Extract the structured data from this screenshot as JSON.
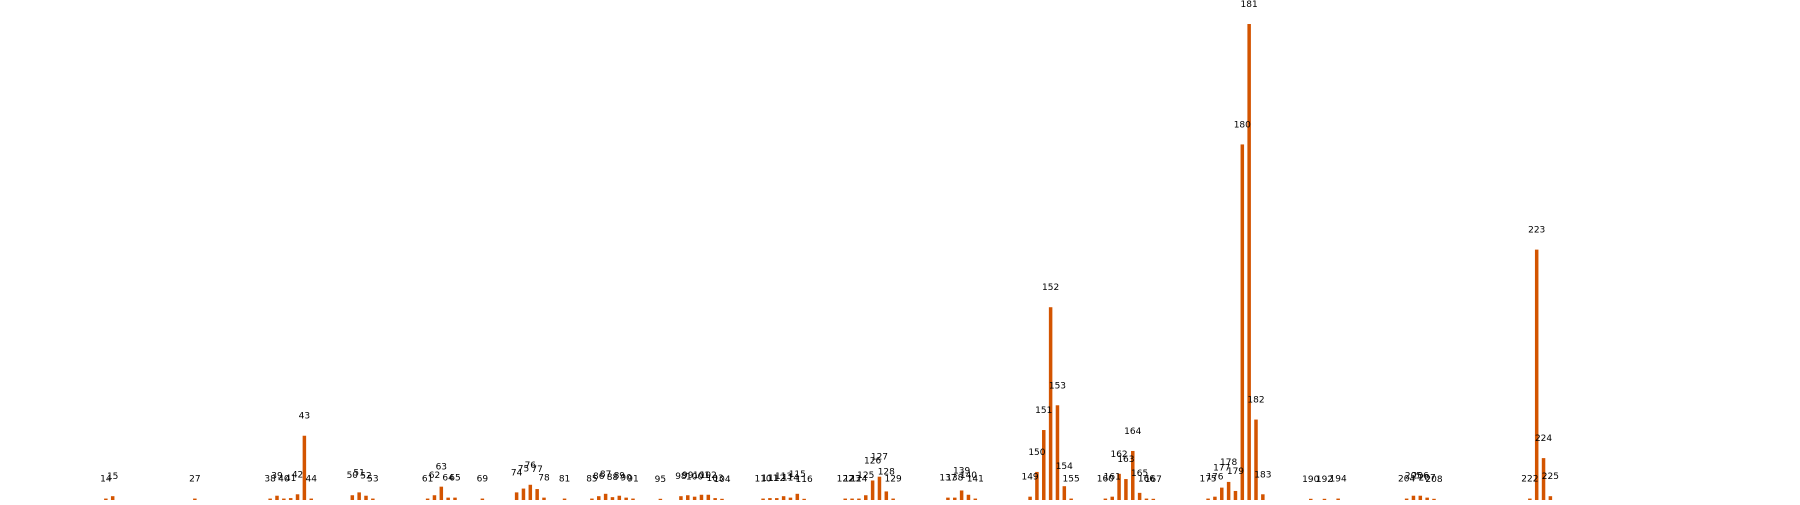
{
  "chart_data": {
    "type": "bar",
    "title": "",
    "xlabel": "",
    "ylabel": "",
    "grid": false,
    "axes_visible": false,
    "bar_color": "#D35400",
    "x_range": [
      0,
      260
    ],
    "ylim": [
      0,
      100
    ],
    "points": [
      {
        "x": 14,
        "value": 0.3,
        "label": "14"
      },
      {
        "x": 15,
        "value": 0.8,
        "label": "15"
      },
      {
        "x": 27,
        "value": 0.3,
        "label": "27"
      },
      {
        "x": 38,
        "value": 0.3,
        "label": "38"
      },
      {
        "x": 39,
        "value": 0.9,
        "label": "39"
      },
      {
        "x": 40,
        "value": 0.3,
        "label": "40"
      },
      {
        "x": 41,
        "value": 0.4,
        "label": "41"
      },
      {
        "x": 42,
        "value": 1.2,
        "label": "42"
      },
      {
        "x": 43,
        "value": 13.5,
        "label": "43"
      },
      {
        "x": 44,
        "value": 0.3,
        "label": "44"
      },
      {
        "x": 50,
        "value": 1.0,
        "label": "50"
      },
      {
        "x": 51,
        "value": 1.6,
        "label": "51"
      },
      {
        "x": 52,
        "value": 0.9,
        "label": "52"
      },
      {
        "x": 53,
        "value": 0.3,
        "label": "53"
      },
      {
        "x": 61,
        "value": 0.3,
        "label": "61"
      },
      {
        "x": 62,
        "value": 1.0,
        "label": "62"
      },
      {
        "x": 63,
        "value": 2.8,
        "label": "63"
      },
      {
        "x": 64,
        "value": 0.5,
        "label": "64"
      },
      {
        "x": 65,
        "value": 0.5,
        "label": "65"
      },
      {
        "x": 69,
        "value": 0.3,
        "label": "69"
      },
      {
        "x": 74,
        "value": 1.6,
        "label": "74"
      },
      {
        "x": 75,
        "value": 2.4,
        "label": "75"
      },
      {
        "x": 76,
        "value": 3.2,
        "label": "76"
      },
      {
        "x": 77,
        "value": 2.3,
        "label": "77"
      },
      {
        "x": 78,
        "value": 0.5,
        "label": "78"
      },
      {
        "x": 81,
        "value": 0.3,
        "label": "81"
      },
      {
        "x": 85,
        "value": 0.3,
        "label": "85"
      },
      {
        "x": 86,
        "value": 0.8,
        "label": "86"
      },
      {
        "x": 87,
        "value": 1.3,
        "label": "87"
      },
      {
        "x": 88,
        "value": 0.6,
        "label": "88"
      },
      {
        "x": 89,
        "value": 0.9,
        "label": "89"
      },
      {
        "x": 90,
        "value": 0.5,
        "label": "90"
      },
      {
        "x": 91,
        "value": 0.3,
        "label": "91"
      },
      {
        "x": 95,
        "value": 0.1,
        "label": "95"
      },
      {
        "x": 98,
        "value": 0.8,
        "label": "98"
      },
      {
        "x": 99,
        "value": 1.0,
        "label": "99"
      },
      {
        "x": 100,
        "value": 0.7,
        "label": "100"
      },
      {
        "x": 101,
        "value": 1.1,
        "label": "101"
      },
      {
        "x": 102,
        "value": 1.1,
        "label": "102"
      },
      {
        "x": 103,
        "value": 0.4,
        "label": "103"
      },
      {
        "x": 104,
        "value": 0.2,
        "label": "104"
      },
      {
        "x": 110,
        "value": 0.3,
        "label": "110"
      },
      {
        "x": 111,
        "value": 0.4,
        "label": "111"
      },
      {
        "x": 112,
        "value": 0.4,
        "label": "112"
      },
      {
        "x": 113,
        "value": 0.8,
        "label": "113"
      },
      {
        "x": 114,
        "value": 0.5,
        "label": "114"
      },
      {
        "x": 115,
        "value": 1.3,
        "label": "115"
      },
      {
        "x": 116,
        "value": 0.2,
        "label": "116"
      },
      {
        "x": 122,
        "value": 0.3,
        "label": "122"
      },
      {
        "x": 123,
        "value": 0.3,
        "label": "123"
      },
      {
        "x": 124,
        "value": 0.3,
        "label": "124"
      },
      {
        "x": 125,
        "value": 1.0,
        "label": "125"
      },
      {
        "x": 126,
        "value": 4.1,
        "label": "126"
      },
      {
        "x": 127,
        "value": 4.9,
        "label": "127"
      },
      {
        "x": 128,
        "value": 1.8,
        "label": "128"
      },
      {
        "x": 129,
        "value": 0.3,
        "label": "129"
      },
      {
        "x": 137,
        "value": 0.5,
        "label": "137"
      },
      {
        "x": 138,
        "value": 0.5,
        "label": "138"
      },
      {
        "x": 139,
        "value": 2.0,
        "label": "139"
      },
      {
        "x": 140,
        "value": 1.1,
        "label": "140"
      },
      {
        "x": 141,
        "value": 0.3,
        "label": "141"
      },
      {
        "x": 149,
        "value": 0.7,
        "label": "149"
      },
      {
        "x": 150,
        "value": 5.9,
        "label": "150"
      },
      {
        "x": 151,
        "value": 14.7,
        "label": "151"
      },
      {
        "x": 152,
        "value": 40.5,
        "label": "152"
      },
      {
        "x": 153,
        "value": 19.9,
        "label": "153"
      },
      {
        "x": 154,
        "value": 2.9,
        "label": "154"
      },
      {
        "x": 155,
        "value": 0.3,
        "label": "155"
      },
      {
        "x": 160,
        "value": 0.3,
        "label": "160"
      },
      {
        "x": 161,
        "value": 0.7,
        "label": "161"
      },
      {
        "x": 162,
        "value": 5.5,
        "label": "162"
      },
      {
        "x": 163,
        "value": 4.4,
        "label": "163"
      },
      {
        "x": 164,
        "value": 10.3,
        "label": "164"
      },
      {
        "x": 165,
        "value": 1.5,
        "label": "165"
      },
      {
        "x": 166,
        "value": 0.3,
        "label": "166"
      },
      {
        "x": 167,
        "value": 0.1,
        "label": "167"
      },
      {
        "x": 175,
        "value": 0.3,
        "label": "175"
      },
      {
        "x": 176,
        "value": 0.7,
        "label": "176"
      },
      {
        "x": 177,
        "value": 2.6,
        "label": "177"
      },
      {
        "x": 178,
        "value": 3.8,
        "label": "178"
      },
      {
        "x": 179,
        "value": 1.9,
        "label": "179"
      },
      {
        "x": 180,
        "value": 74.7,
        "label": "180"
      },
      {
        "x": 181,
        "value": 100.0,
        "label": "181"
      },
      {
        "x": 182,
        "value": 16.9,
        "label": "182"
      },
      {
        "x": 183,
        "value": 1.2,
        "label": "183"
      },
      {
        "x": 190,
        "value": 0.1,
        "label": "190"
      },
      {
        "x": 192,
        "value": 0.1,
        "label": "192"
      },
      {
        "x": 194,
        "value": 0.3,
        "label": "194"
      },
      {
        "x": 204,
        "value": 0.3,
        "label": "204"
      },
      {
        "x": 205,
        "value": 0.9,
        "label": "205"
      },
      {
        "x": 206,
        "value": 0.9,
        "label": "206"
      },
      {
        "x": 207,
        "value": 0.5,
        "label": "207"
      },
      {
        "x": 208,
        "value": 0.1,
        "label": "208"
      },
      {
        "x": 222,
        "value": 0.3,
        "label": "222"
      },
      {
        "x": 223,
        "value": 52.6,
        "label": "223"
      },
      {
        "x": 224,
        "value": 8.8,
        "label": "224"
      },
      {
        "x": 225,
        "value": 0.8,
        "label": "225"
      }
    ]
  }
}
